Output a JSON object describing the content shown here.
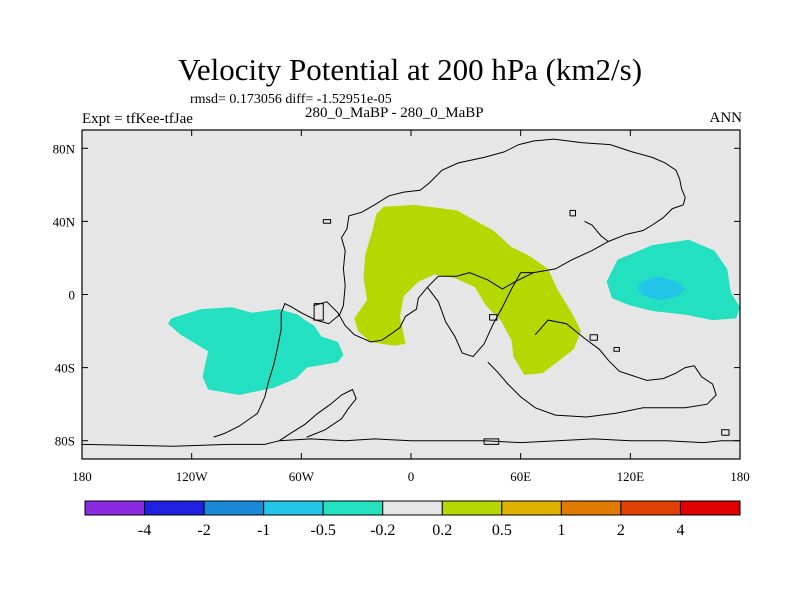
{
  "header": {
    "title": "Velocity Potential at 200 hPa (km2/s)",
    "stats": "rmsd= 0.173056 diff= -1.52951e-05",
    "experiment": "Expt = tfKee-tfJae",
    "case": "280_0_MaBP - 280_0_MaBP",
    "season": "ANN"
  },
  "chart_data": {
    "type": "contour-map",
    "title": "Velocity Potential at 200 hPa (km2/s)",
    "projection": "cylindrical equidistant",
    "xlim": [
      -180,
      180
    ],
    "ylim": [
      -90,
      90
    ],
    "x_ticks": [
      {
        "value": -180,
        "label": "180"
      },
      {
        "value": -120,
        "label": "120W"
      },
      {
        "value": -60,
        "label": "60W"
      },
      {
        "value": 0,
        "label": "0"
      },
      {
        "value": 60,
        "label": "60E"
      },
      {
        "value": 120,
        "label": "120E"
      },
      {
        "value": 180,
        "label": "180"
      }
    ],
    "y_ticks": [
      {
        "value": 80,
        "label": "80N"
      },
      {
        "value": 40,
        "label": "40N"
      },
      {
        "value": 0,
        "label": "0"
      },
      {
        "value": -40,
        "label": "40S"
      },
      {
        "value": -80,
        "label": "80S"
      }
    ],
    "colorbar": {
      "colors": [
        "#8a2be2",
        "#2020e0",
        "#1a8ad8",
        "#22c4e8",
        "#22e0c0",
        "#e6e6e6",
        "#b4d800",
        "#e0b000",
        "#e07a00",
        "#e04000",
        "#e00000"
      ],
      "labels": [
        "-4",
        "-2",
        "-1",
        "-0.5",
        "-0.2",
        "0.2",
        "0.5",
        "1",
        "2",
        "4"
      ]
    },
    "background_color": "#e6e6e6",
    "filled_regions": [
      {
        "level": "-0.5 to -0.2",
        "color": "#22e0c0",
        "polygon": [
          [
            -131,
            -13
          ],
          [
            -115,
            -8
          ],
          [
            -98,
            -7
          ],
          [
            -87,
            -10
          ],
          [
            -72,
            -8
          ],
          [
            -62,
            -11
          ],
          [
            -58,
            -14
          ],
          [
            -53,
            -17
          ],
          [
            -49,
            -23
          ],
          [
            -40,
            -26
          ],
          [
            -37,
            -33
          ],
          [
            -40,
            -37
          ],
          [
            -57,
            -40
          ],
          [
            -63,
            -46
          ],
          [
            -75,
            -51
          ],
          [
            -94,
            -55
          ],
          [
            -111,
            -52
          ],
          [
            -114,
            -45
          ],
          [
            -111,
            -31
          ],
          [
            -126,
            -22
          ],
          [
            -133,
            -16
          ]
        ]
      },
      {
        "level": "0.2 to 0.5",
        "color": "#b4d800",
        "polygon": [
          [
            -15,
            48
          ],
          [
            2,
            49
          ],
          [
            25,
            46
          ],
          [
            45,
            35
          ],
          [
            55,
            26
          ],
          [
            65,
            21
          ],
          [
            75,
            14
          ],
          [
            80,
            3
          ],
          [
            88,
            -10
          ],
          [
            93,
            -20
          ],
          [
            89,
            -30
          ],
          [
            80,
            -37
          ],
          [
            72,
            -43
          ],
          [
            62,
            -44
          ],
          [
            56,
            -34
          ],
          [
            55,
            -25
          ],
          [
            49,
            -14
          ],
          [
            41,
            -6
          ],
          [
            35,
            4
          ],
          [
            24,
            9
          ],
          [
            13,
            11
          ],
          [
            4,
            7
          ],
          [
            -4,
            -1
          ],
          [
            -6,
            -12
          ],
          [
            -3,
            -27
          ],
          [
            -9,
            -28
          ],
          [
            -22,
            -26
          ],
          [
            -29,
            -20
          ],
          [
            -31,
            -13
          ],
          [
            -24,
            -3
          ],
          [
            -26,
            9
          ],
          [
            -25,
            22
          ],
          [
            -21,
            35
          ],
          [
            -19,
            44
          ]
        ]
      },
      {
        "level": "-0.5 to -0.2",
        "color": "#22e0c0",
        "polygon": [
          [
            113,
            19
          ],
          [
            132,
            27
          ],
          [
            152,
            30
          ],
          [
            166,
            24
          ],
          [
            173,
            14
          ],
          [
            175,
            1
          ],
          [
            180,
            -7
          ],
          [
            178,
            -13
          ],
          [
            165,
            -14
          ],
          [
            150,
            -11
          ],
          [
            132,
            -9
          ],
          [
            120,
            -6
          ],
          [
            110,
            -2
          ],
          [
            107,
            7
          ]
        ]
      },
      {
        "level": "-1 to -0.5",
        "color": "#22c4e8",
        "polygon": [
          [
            126,
            7
          ],
          [
            135,
            10
          ],
          [
            146,
            7
          ],
          [
            150,
            3
          ],
          [
            146,
            -1
          ],
          [
            137,
            -3
          ],
          [
            128,
            -1
          ],
          [
            124,
            3
          ]
        ]
      }
    ],
    "coastlines": [
      {
        "name": "americas",
        "points": [
          [
            -108,
            -78
          ],
          [
            -102,
            -76
          ],
          [
            -94,
            -72
          ],
          [
            -84,
            -65
          ],
          [
            -80,
            -56
          ],
          [
            -78,
            -48
          ],
          [
            -75,
            -38
          ],
          [
            -73,
            -29
          ],
          [
            -71,
            -19
          ],
          [
            -71,
            -10
          ],
          [
            -69,
            -5
          ],
          [
            -65,
            -7
          ],
          [
            -60,
            -10
          ],
          [
            -52,
            -14
          ],
          [
            -45,
            -16
          ],
          [
            -39,
            -11
          ],
          [
            -37,
            -6
          ],
          [
            -36,
            5
          ],
          [
            -37,
            14
          ],
          [
            -36,
            24
          ],
          [
            -38,
            31
          ],
          [
            -35,
            36
          ],
          [
            -34,
            43
          ],
          [
            -27,
            45
          ],
          [
            -20,
            49
          ],
          [
            -12,
            54
          ],
          [
            -4,
            56
          ],
          [
            5,
            57
          ],
          [
            10,
            61
          ],
          [
            17,
            68
          ],
          [
            26,
            72
          ],
          [
            40,
            75
          ],
          [
            51,
            78
          ],
          [
            59,
            82
          ],
          [
            67,
            84
          ],
          [
            78,
            85
          ],
          [
            94,
            83
          ],
          [
            109,
            82
          ],
          [
            121,
            78
          ],
          [
            132,
            75
          ],
          [
            139,
            72
          ],
          [
            145,
            68
          ],
          [
            147,
            63
          ],
          [
            148,
            58
          ],
          [
            150,
            53
          ],
          [
            149,
            49
          ],
          [
            143,
            47
          ],
          [
            138,
            42
          ],
          [
            132,
            38
          ],
          [
            127,
            35
          ],
          [
            118,
            33
          ],
          [
            108,
            29
          ],
          [
            99,
            24
          ],
          [
            88,
            19
          ],
          [
            79,
            14
          ],
          [
            67,
            12
          ],
          [
            57,
            7
          ],
          [
            50,
            3
          ],
          [
            42,
            8
          ],
          [
            32,
            12
          ],
          [
            25,
            10
          ],
          [
            15,
            10
          ],
          [
            9,
            4
          ],
          [
            4,
            -2
          ],
          [
            3,
            -8
          ],
          [
            -3,
            -12
          ],
          [
            -6,
            -18
          ],
          [
            -10,
            -21
          ],
          [
            -16,
            -25
          ],
          [
            -22,
            -26
          ],
          [
            -31,
            -22
          ],
          [
            -36,
            -17
          ],
          [
            -40,
            -10
          ],
          [
            -46,
            -4
          ],
          [
            -53,
            -6
          ]
        ]
      },
      {
        "name": "south_tip",
        "points": [
          [
            -72,
            -80
          ],
          [
            -66,
            -76
          ],
          [
            -58,
            -71
          ],
          [
            -51,
            -65
          ],
          [
            -44,
            -60
          ],
          [
            -38,
            -55
          ],
          [
            -32,
            -52
          ],
          [
            -30,
            -57
          ],
          [
            -34,
            -62
          ],
          [
            -38,
            -68
          ],
          [
            -47,
            -74
          ],
          [
            -57,
            -78
          ]
        ]
      },
      {
        "name": "africa_east",
        "points": [
          [
            9,
            4
          ],
          [
            15,
            -4
          ],
          [
            19,
            -15
          ],
          [
            24,
            -23
          ],
          [
            28,
            -32
          ],
          [
            34,
            -34
          ],
          [
            40,
            -27
          ],
          [
            45,
            -16
          ],
          [
            50,
            -7
          ],
          [
            55,
            3
          ],
          [
            60,
            12
          ],
          [
            67,
            12
          ]
        ]
      },
      {
        "name": "australia",
        "points": [
          [
            68,
            -22
          ],
          [
            75,
            -14
          ],
          [
            85,
            -16
          ],
          [
            95,
            -24
          ],
          [
            103,
            -30
          ],
          [
            108,
            -36
          ],
          [
            114,
            -42
          ],
          [
            120,
            -44
          ],
          [
            129,
            -47
          ],
          [
            138,
            -46
          ],
          [
            145,
            -43
          ],
          [
            150,
            -40
          ],
          [
            155,
            -39
          ],
          [
            159,
            -45
          ],
          [
            165,
            -49
          ],
          [
            167,
            -55
          ],
          [
            162,
            -60
          ],
          [
            150,
            -62
          ],
          [
            140,
            -62
          ],
          [
            127,
            -62
          ],
          [
            112,
            -65
          ],
          [
            96,
            -67
          ],
          [
            79,
            -66
          ],
          [
            68,
            -62
          ],
          [
            60,
            -56
          ],
          [
            53,
            -49
          ],
          [
            47,
            -42
          ],
          [
            42,
            -37
          ]
        ]
      },
      {
        "name": "antarctica",
        "points": [
          [
            -180,
            -82
          ],
          [
            -130,
            -83
          ],
          [
            -100,
            -82
          ],
          [
            -80,
            -82
          ],
          [
            -72,
            -80
          ],
          [
            -55,
            -79
          ],
          [
            -36,
            -80
          ],
          [
            -20,
            -79
          ],
          [
            0,
            -80
          ],
          [
            20,
            -80
          ],
          [
            40,
            -80
          ],
          [
            60,
            -81
          ],
          [
            80,
            -80
          ],
          [
            100,
            -79
          ],
          [
            120,
            -80
          ],
          [
            140,
            -80
          ],
          [
            160,
            -81
          ],
          [
            170,
            -80
          ],
          [
            180,
            -80
          ]
        ]
      },
      {
        "name": "island_tl",
        "points": [
          [
            -48,
            39
          ],
          [
            -44,
            39
          ],
          [
            -44,
            41
          ],
          [
            -48,
            41
          ],
          [
            -48,
            39
          ]
        ]
      },
      {
        "name": "island_bl",
        "points": [
          [
            -53,
            -5
          ],
          [
            -48,
            -5
          ],
          [
            -48,
            -14
          ],
          [
            -53,
            -14
          ],
          [
            -53,
            -5
          ]
        ]
      },
      {
        "name": "island_mid",
        "points": [
          [
            43,
            -14
          ],
          [
            47,
            -14
          ],
          [
            47,
            -11
          ],
          [
            43,
            -11
          ],
          [
            43,
            -14
          ]
        ]
      },
      {
        "name": "island_se",
        "points": [
          [
            98,
            -25
          ],
          [
            102,
            -25
          ],
          [
            102,
            -22
          ],
          [
            98,
            -22
          ],
          [
            98,
            -25
          ]
        ]
      },
      {
        "name": "island_e",
        "points": [
          [
            111,
            -29
          ],
          [
            114,
            -29
          ],
          [
            114,
            -31
          ],
          [
            111,
            -31
          ],
          [
            111,
            -29
          ]
        ]
      },
      {
        "name": "japan",
        "points": [
          [
            95,
            40
          ],
          [
            99,
            38
          ],
          [
            104,
            32
          ],
          [
            108,
            29
          ]
        ]
      },
      {
        "name": "island_ne",
        "points": [
          [
            87,
            43
          ],
          [
            90,
            43
          ],
          [
            90,
            46
          ],
          [
            87,
            46
          ],
          [
            87,
            43
          ]
        ]
      },
      {
        "name": "ant_bit1",
        "points": [
          [
            40,
            -82
          ],
          [
            48,
            -82
          ],
          [
            48,
            -79
          ],
          [
            40,
            -79
          ],
          [
            40,
            -82
          ]
        ]
      },
      {
        "name": "ant_bit2",
        "points": [
          [
            170,
            -77
          ],
          [
            174,
            -77
          ],
          [
            174,
            -74
          ],
          [
            170,
            -74
          ],
          [
            170,
            -77
          ]
        ]
      }
    ]
  }
}
